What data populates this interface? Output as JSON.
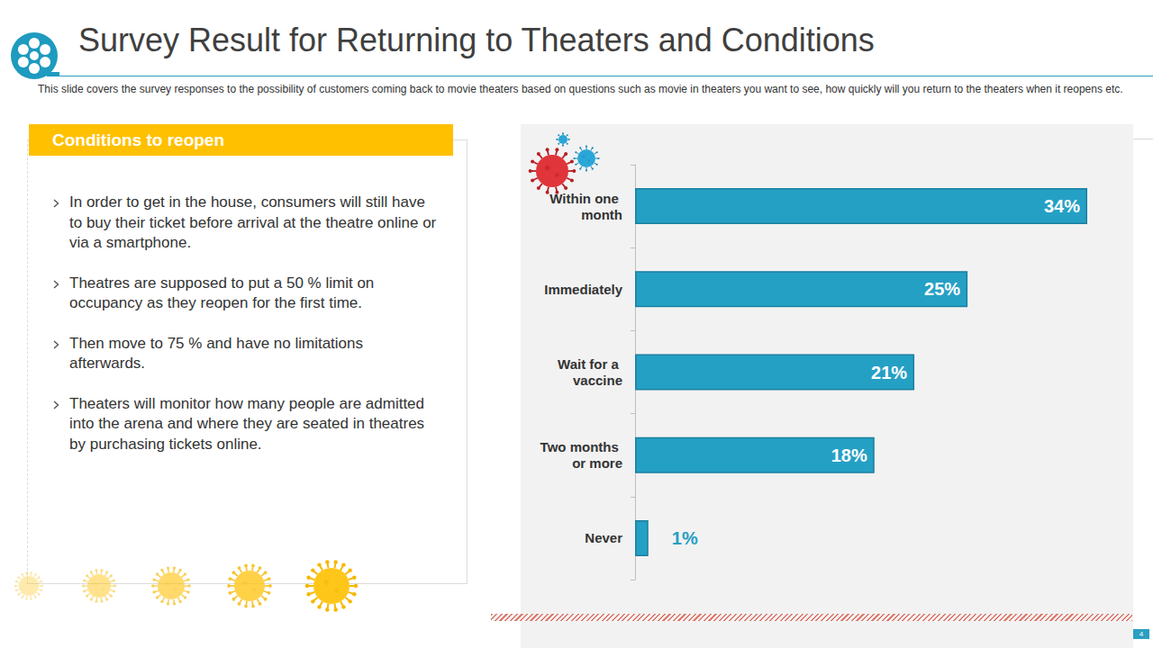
{
  "title": "Survey Result for Returning to Theaters and Conditions",
  "description": "This slide covers the survey responses to the possibility of customers coming back to movie theaters based on questions such as movie in theaters you want to see, how quickly will you return to the theaters when it reopens etc.",
  "panel": {
    "heading": "Conditions to reopen",
    "bullets": [
      "In order to get in the house, consumers will still have to buy their ticket before arrival at the theatre online or via a smartphone.",
      "Theatres are supposed to put a 50 % limit on occupancy as they reopen for the first time.",
      "Then move to 75 % and have no limitations afterwards.",
      "Theaters will monitor how many people are admitted into the arena and where they are seated in theatres by purchasing tickets online."
    ]
  },
  "chart_data": {
    "type": "bar",
    "orientation": "horizontal",
    "categories": [
      "Within one month",
      "Immediately",
      "Wait for a vaccine",
      "Two months or more",
      "Never"
    ],
    "values": [
      34,
      25,
      21,
      18,
      1
    ],
    "value_labels": [
      "34%",
      "25%",
      "21%",
      "18%",
      "1%"
    ],
    "data_labels": true,
    "color": "#25a0c5",
    "xlim": [
      0,
      34
    ],
    "tick_labels": "y",
    "grid": false
  },
  "page_number": "4"
}
